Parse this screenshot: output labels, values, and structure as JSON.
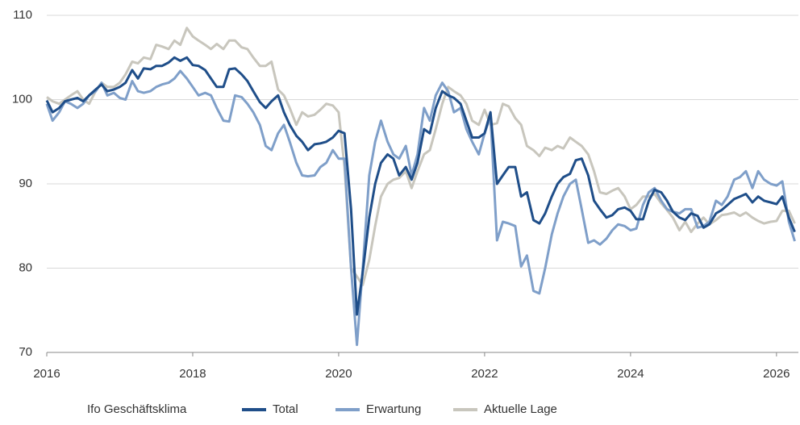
{
  "chart_data": {
    "type": "line",
    "legend_title": "Ifo Geschäftsklima",
    "x": [
      2016,
      2016.08,
      2016.17,
      2016.25,
      2016.33,
      2016.42,
      2016.5,
      2016.58,
      2016.67,
      2016.75,
      2016.83,
      2016.92,
      2017,
      2017.08,
      2017.17,
      2017.25,
      2017.33,
      2017.42,
      2017.5,
      2017.58,
      2017.67,
      2017.75,
      2017.83,
      2017.92,
      2018,
      2018.08,
      2018.17,
      2018.25,
      2018.33,
      2018.42,
      2018.5,
      2018.58,
      2018.67,
      2018.75,
      2018.83,
      2018.92,
      2019,
      2019.08,
      2019.17,
      2019.25,
      2019.33,
      2019.42,
      2019.5,
      2019.58,
      2019.67,
      2019.75,
      2019.83,
      2019.92,
      2020,
      2020.08,
      2020.17,
      2020.25,
      2020.33,
      2020.42,
      2020.5,
      2020.58,
      2020.67,
      2020.75,
      2020.83,
      2020.92,
      2021,
      2021.08,
      2021.17,
      2021.25,
      2021.33,
      2021.42,
      2021.5,
      2021.58,
      2021.67,
      2021.75,
      2021.83,
      2021.92,
      2022,
      2022.08,
      2022.17,
      2022.25,
      2022.33,
      2022.42,
      2022.5,
      2022.58,
      2022.67,
      2022.75,
      2022.83,
      2022.92,
      2023,
      2023.08,
      2023.17,
      2023.25,
      2023.33,
      2023.42,
      2023.5,
      2023.58,
      2023.67,
      2023.75,
      2023.83,
      2023.92,
      2024,
      2024.08,
      2024.17,
      2024.25,
      2024.33,
      2024.42,
      2024.5,
      2024.58,
      2024.67,
      2024.75,
      2024.83,
      2024.92,
      2025,
      2025.08,
      2025.17,
      2025.25,
      2025.33,
      2025.42,
      2025.5,
      2025.58,
      2025.67,
      2025.75,
      2025.83,
      2025.92,
      2026,
      2026.08,
      2026.17,
      2026.25
    ],
    "series": [
      {
        "name": "Total",
        "color": "#1f4e89",
        "values": [
          99.9,
          98.5,
          99.0,
          99.8,
          100.0,
          100.2,
          99.8,
          100.5,
          101.2,
          101.8,
          101.0,
          101.2,
          101.5,
          102.0,
          103.5,
          102.5,
          103.7,
          103.6,
          104.0,
          104.0,
          104.4,
          105.0,
          104.6,
          105.0,
          104.1,
          104.0,
          103.5,
          102.5,
          101.5,
          101.5,
          103.6,
          103.7,
          103.0,
          102.2,
          101.0,
          99.7,
          99.0,
          99.8,
          100.5,
          98.5,
          97.0,
          95.7,
          95.0,
          94.0,
          94.7,
          94.8,
          95.0,
          95.5,
          96.3,
          96.0,
          87.0,
          74.5,
          79.5,
          86.0,
          90.0,
          92.5,
          93.5,
          93.0,
          91.0,
          92.0,
          90.5,
          92.5,
          96.5,
          96.0,
          99.0,
          101.0,
          100.5,
          100.2,
          99.5,
          97.5,
          95.5,
          95.5,
          96.0,
          98.5,
          90.0,
          91.0,
          92.0,
          92.0,
          88.5,
          89.0,
          85.7,
          85.3,
          86.5,
          88.5,
          90.0,
          90.8,
          91.2,
          92.8,
          93.0,
          91.0,
          88.0,
          87.0,
          86.0,
          86.3,
          87.0,
          87.2,
          86.8,
          85.8,
          85.8,
          88.0,
          89.3,
          89.0,
          88.0,
          86.7,
          86.0,
          85.7,
          86.5,
          86.2,
          84.8,
          85.2,
          86.5,
          86.9,
          87.5,
          88.2,
          88.5,
          88.8,
          87.8,
          88.5,
          88.0,
          87.8,
          87.6,
          88.5,
          86.0,
          84.3
        ]
      },
      {
        "name": "Erwartung",
        "color": "#7f9fc9",
        "values": [
          99.5,
          97.5,
          98.5,
          99.8,
          99.5,
          99.0,
          99.5,
          100.5,
          101.0,
          102.0,
          100.5,
          100.8,
          100.2,
          100.0,
          102.2,
          101.0,
          100.8,
          101.0,
          101.5,
          101.8,
          102.0,
          102.5,
          103.4,
          102.5,
          101.5,
          100.5,
          100.8,
          100.5,
          99.0,
          97.5,
          97.4,
          100.5,
          100.3,
          99.5,
          98.5,
          97.0,
          94.5,
          94.0,
          96.0,
          97.0,
          95.0,
          92.5,
          91.0,
          90.9,
          91.0,
          92.0,
          92.5,
          94.0,
          93.0,
          93.0,
          80.0,
          70.9,
          80.0,
          91.0,
          95.0,
          97.5,
          95.0,
          93.5,
          93.0,
          94.5,
          91.0,
          93.5,
          99.0,
          97.5,
          100.5,
          102.0,
          101.0,
          98.5,
          99.0,
          96.5,
          95.0,
          93.5,
          96.0,
          98.0,
          83.3,
          85.5,
          85.3,
          85.0,
          80.2,
          81.5,
          77.3,
          77.0,
          80.0,
          84.0,
          86.5,
          88.5,
          90.0,
          90.5,
          87.0,
          83.0,
          83.3,
          82.8,
          83.5,
          84.5,
          85.2,
          85.0,
          84.5,
          84.7,
          87.5,
          89.0,
          89.5,
          88.0,
          87.0,
          86.7,
          86.5,
          87.0,
          87.0,
          84.8,
          85.0,
          85.5,
          88.0,
          87.5,
          88.5,
          90.5,
          90.8,
          91.5,
          89.5,
          91.5,
          90.5,
          90.0,
          89.8,
          90.3,
          85.5,
          83.2
        ]
      },
      {
        "name": "Aktuelle Lage",
        "color": "#c8c6bd",
        "values": [
          100.3,
          99.8,
          99.5,
          100.0,
          100.5,
          101.0,
          100.0,
          99.5,
          101.0,
          102.0,
          101.5,
          101.5,
          102.0,
          103.0,
          104.5,
          104.3,
          105.0,
          104.8,
          106.5,
          106.3,
          106.0,
          107.0,
          106.5,
          108.5,
          107.5,
          107.0,
          106.5,
          106.0,
          106.6,
          106.0,
          107.0,
          107.0,
          106.2,
          106.0,
          105.0,
          104.0,
          104.0,
          104.5,
          101.2,
          100.5,
          99.0,
          97.0,
          98.5,
          98.0,
          98.2,
          98.8,
          99.5,
          99.3,
          98.5,
          92.0,
          80.0,
          79.0,
          78.0,
          81.0,
          85.0,
          88.5,
          90.0,
          90.5,
          90.7,
          91.5,
          89.5,
          91.5,
          93.5,
          94.0,
          96.5,
          99.5,
          101.5,
          101.0,
          100.5,
          99.5,
          97.5,
          97.0,
          98.8,
          97.0,
          97.2,
          99.5,
          99.2,
          97.8,
          97.0,
          94.5,
          94.0,
          93.3,
          94.3,
          94.0,
          94.5,
          94.2,
          95.5,
          95.0,
          94.5,
          93.5,
          91.5,
          89.0,
          88.8,
          89.2,
          89.5,
          88.5,
          87.0,
          87.5,
          88.5,
          88.5,
          88.8,
          87.7,
          86.9,
          86.0,
          84.5,
          85.5,
          84.3,
          85.3,
          86.0,
          85.2,
          85.7,
          86.3,
          86.4,
          86.6,
          86.2,
          86.6,
          86.0,
          85.6,
          85.3,
          85.5,
          85.6,
          86.8,
          86.8,
          85.3
        ]
      }
    ],
    "xlim": [
      2016,
      2026.3
    ],
    "xticks": [
      2016,
      2018,
      2020,
      2022,
      2024,
      2026
    ],
    "ylim": [
      70,
      110
    ],
    "yticks": [
      70,
      80,
      90,
      100,
      110
    ],
    "grid": true,
    "legend": "bottom"
  }
}
